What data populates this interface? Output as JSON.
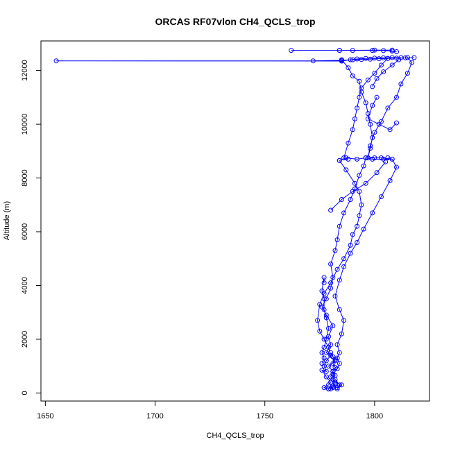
{
  "chart_data": {
    "type": "line",
    "title": "ORCAS RF07vlon CH4_QCLS_trop",
    "xlabel": "CH4_QCLS_trop",
    "ylabel": "Altitude (m)",
    "xlim": [
      1648,
      1825
    ],
    "ylim": [
      -300,
      13100
    ],
    "xticks": [
      1650,
      1700,
      1750,
      1800
    ],
    "yticks": [
      0,
      2000,
      4000,
      6000,
      8000,
      10000,
      12000
    ],
    "grid": false,
    "marker": "open-circle",
    "color": "#0000ff",
    "series": [
      {
        "points": [
          [
            1779,
            150
          ],
          [
            1781,
            250
          ],
          [
            1783,
            200
          ],
          [
            1785,
            300
          ],
          [
            1782,
            400
          ],
          [
            1780,
            600
          ],
          [
            1781,
            800
          ],
          [
            1779,
            1000
          ],
          [
            1782,
            1200
          ],
          [
            1778,
            1500
          ],
          [
            1780,
            1800
          ],
          [
            1779,
            2100
          ],
          [
            1781,
            2500
          ],
          [
            1778,
            2900
          ],
          [
            1776,
            3200
          ],
          [
            1778,
            3500
          ],
          [
            1780,
            3900
          ],
          [
            1781,
            4300
          ],
          [
            1780,
            4800
          ],
          [
            1782,
            5300
          ],
          [
            1783,
            5700
          ],
          [
            1784,
            6200
          ],
          [
            1786,
            6700
          ],
          [
            1789,
            7200
          ],
          [
            1791,
            7600
          ],
          [
            1793,
            8100
          ],
          [
            1795,
            8450
          ],
          [
            1796,
            8750
          ],
          [
            1800,
            8750
          ],
          [
            1803,
            8750
          ],
          [
            1808,
            8700
          ],
          [
            1804,
            8700
          ],
          [
            1799,
            8700
          ],
          [
            1796,
            8750
          ],
          [
            1792,
            8700
          ],
          [
            1787,
            8750
          ],
          [
            1784,
            8650
          ]
        ]
      },
      {
        "points": [
          [
            1784,
            8650
          ],
          [
            1787,
            8300
          ],
          [
            1791,
            7800
          ],
          [
            1793,
            7500
          ],
          [
            1794,
            7000
          ],
          [
            1793,
            6600
          ],
          [
            1792,
            6200
          ],
          [
            1790,
            5900
          ],
          [
            1789,
            5500
          ],
          [
            1786,
            5000
          ],
          [
            1783,
            4600
          ],
          [
            1780,
            4100
          ],
          [
            1777,
            3700
          ],
          [
            1775,
            3300
          ],
          [
            1774,
            2700
          ],
          [
            1775,
            2300
          ],
          [
            1777,
            2000
          ],
          [
            1779,
            1700
          ],
          [
            1780,
            1400
          ],
          [
            1778,
            1200
          ],
          [
            1777,
            1000
          ],
          [
            1778,
            800
          ],
          [
            1776,
            850
          ],
          [
            1778,
            600
          ],
          [
            1780,
            400
          ],
          [
            1779,
            300
          ],
          [
            1777,
            200
          ],
          [
            1779,
            150
          ]
        ]
      },
      {
        "points": [
          [
            1783,
            150
          ],
          [
            1784,
            300
          ],
          [
            1782,
            500
          ],
          [
            1781,
            700
          ],
          [
            1783,
            900
          ],
          [
            1784,
            1100
          ],
          [
            1783,
            1300
          ],
          [
            1784,
            1500
          ],
          [
            1783,
            1800
          ],
          [
            1785,
            2200
          ],
          [
            1786,
            2700
          ],
          [
            1784,
            3100
          ],
          [
            1782,
            3600
          ],
          [
            1784,
            4200
          ],
          [
            1786,
            4700
          ],
          [
            1789,
            5200
          ],
          [
            1792,
            5600
          ],
          [
            1795,
            6100
          ],
          [
            1799,
            6700
          ],
          [
            1803,
            7300
          ],
          [
            1807,
            7900
          ],
          [
            1810,
            8400
          ],
          [
            1808,
            8700
          ],
          [
            1806,
            8750
          ]
        ]
      },
      {
        "points": [
          [
            1797,
            8750
          ],
          [
            1798,
            9200
          ],
          [
            1800,
            9700
          ],
          [
            1803,
            10100
          ],
          [
            1806,
            10600
          ],
          [
            1810,
            11000
          ],
          [
            1812,
            11500
          ],
          [
            1815,
            11900
          ],
          [
            1817,
            12300
          ],
          [
            1815,
            12480
          ]
        ]
      },
      {
        "points": [
          [
            1818,
            12480
          ],
          [
            1814,
            12470
          ],
          [
            1810,
            12460
          ],
          [
            1806,
            12450
          ],
          [
            1802,
            12440
          ],
          [
            1798,
            12420
          ],
          [
            1794,
            12410
          ],
          [
            1790,
            12400
          ],
          [
            1785,
            12380
          ],
          [
            1772,
            12360
          ],
          [
            1655,
            12360
          ],
          [
            1785,
            12350
          ],
          [
            1789,
            12400
          ],
          [
            1792,
            12430
          ],
          [
            1796,
            12450
          ],
          [
            1800,
            12460
          ],
          [
            1804,
            12470
          ],
          [
            1808,
            12480
          ],
          [
            1812,
            12480
          ]
        ]
      },
      {
        "points": [
          [
            1810,
            12700
          ],
          [
            1808,
            12720
          ],
          [
            1804,
            12740
          ],
          [
            1799,
            12750
          ],
          [
            1790,
            12750
          ],
          [
            1784,
            12750
          ],
          [
            1762,
            12750
          ],
          [
            1784,
            12750
          ],
          [
            1800,
            12760
          ],
          [
            1808,
            12760
          ]
        ]
      },
      {
        "points": [
          [
            1806,
            12450
          ],
          [
            1803,
            12200
          ],
          [
            1800,
            11900
          ],
          [
            1797,
            11650
          ],
          [
            1794,
            11350
          ],
          [
            1793,
            11000
          ],
          [
            1792,
            10600
          ],
          [
            1791,
            10200
          ],
          [
            1790,
            9800
          ],
          [
            1788,
            9300
          ],
          [
            1786,
            8750
          ],
          [
            1788,
            8700
          ]
        ]
      },
      {
        "points": [
          [
            1785,
            12400
          ],
          [
            1788,
            12100
          ],
          [
            1790,
            11800
          ],
          [
            1793,
            11600
          ],
          [
            1794,
            11200
          ],
          [
            1796,
            10800
          ],
          [
            1797,
            10400
          ],
          [
            1798,
            10000
          ],
          [
            1799,
            9500
          ],
          [
            1798,
            9100
          ],
          [
            1797,
            8750
          ]
        ]
      },
      {
        "points": [
          [
            1801,
            11000
          ],
          [
            1799,
            10700
          ],
          [
            1797,
            10200
          ],
          [
            1802,
            10000
          ],
          [
            1807,
            9800
          ],
          [
            1810,
            10050
          ]
        ]
      },
      {
        "points": [
          [
            1799,
            11400
          ],
          [
            1801,
            11700
          ],
          [
            1804,
            11950
          ],
          [
            1808,
            12200
          ],
          [
            1811,
            12400
          ]
        ]
      },
      {
        "points": [
          [
            1780,
            6800
          ],
          [
            1785,
            7200
          ],
          [
            1790,
            7500
          ],
          [
            1796,
            7800
          ],
          [
            1801,
            8200
          ],
          [
            1805,
            8600
          ]
        ]
      },
      {
        "points": [
          [
            1777,
            4100
          ],
          [
            1777,
            4300
          ],
          [
            1776,
            3800
          ],
          [
            1777,
            3500
          ],
          [
            1777,
            3100
          ],
          [
            1778,
            2800
          ],
          [
            1779,
            2400
          ],
          [
            1778,
            2000
          ],
          [
            1777,
            1700
          ],
          [
            1776,
            1500
          ],
          [
            1777,
            1300
          ],
          [
            1776,
            1100
          ]
        ]
      },
      {
        "points": [
          [
            1780,
            1500
          ],
          [
            1781,
            1350
          ],
          [
            1782,
            1250
          ],
          [
            1781,
            1100
          ],
          [
            1782,
            950
          ],
          [
            1781,
            800
          ],
          [
            1782,
            650
          ],
          [
            1781,
            500
          ],
          [
            1782,
            350
          ],
          [
            1781,
            200
          ],
          [
            1780,
            150
          ]
        ]
      }
    ]
  }
}
